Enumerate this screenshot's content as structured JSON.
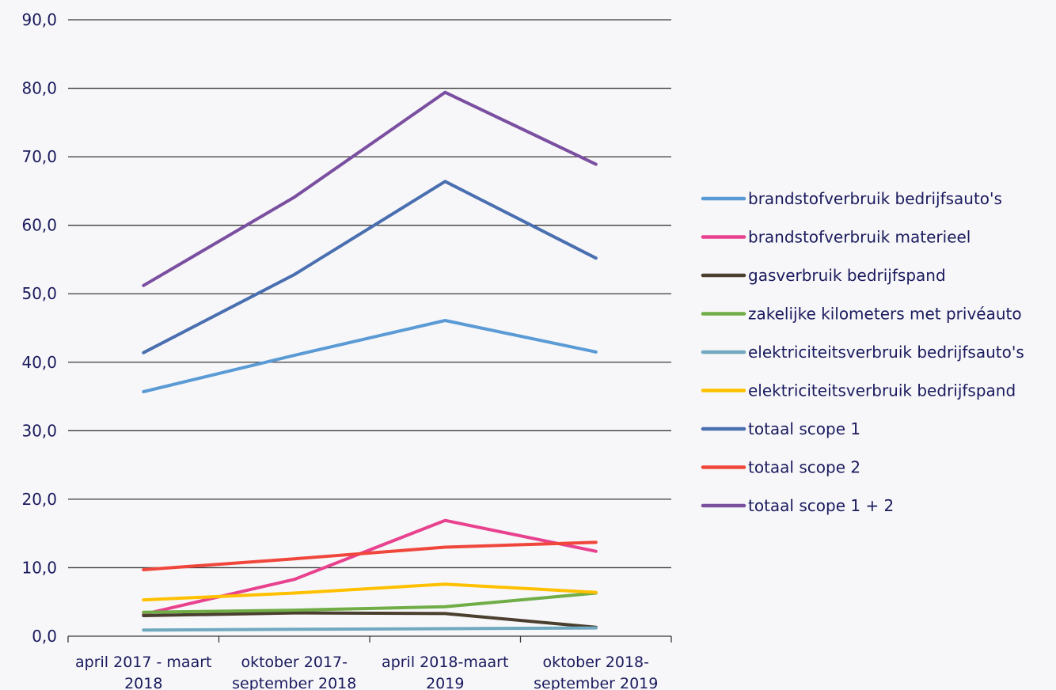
{
  "chart_data": {
    "type": "line",
    "title": "",
    "xlabel": "",
    "ylabel": "",
    "categories": [
      [
        "april 2017 - maart",
        "2018"
      ],
      [
        "oktober 2017-",
        "september 2018"
      ],
      [
        "april 2018-maart",
        "2019"
      ],
      [
        "oktober 2018-",
        "september 2019"
      ]
    ],
    "ylim": [
      0,
      90
    ],
    "yticks": [
      0,
      10,
      20,
      30,
      40,
      50,
      60,
      70,
      80,
      90
    ],
    "ytick_labels": [
      "0,0",
      "10,0",
      "20,0",
      "30,0",
      "40,0",
      "50,0",
      "60,0",
      "70,0",
      "80,0",
      "90,0"
    ],
    "grid": true,
    "legend_position": "right",
    "series": [
      {
        "name": "brandstofverbruik bedrijfsauto's",
        "color": "#5b9bd5",
        "values": [
          35.7,
          41.0,
          46.1,
          41.5
        ]
      },
      {
        "name": "brandstofverbruik materieel",
        "color": "#e8428f",
        "values": [
          3.2,
          8.3,
          16.9,
          12.4
        ]
      },
      {
        "name": "gasverbruik bedrijfspand",
        "color": "#4a3f2e",
        "values": [
          3.0,
          3.4,
          3.3,
          1.3
        ]
      },
      {
        "name": "zakelijke kilometers met privéauto",
        "color": "#70ad47",
        "values": [
          3.5,
          3.8,
          4.3,
          6.3
        ]
      },
      {
        "name": "elektriciteitsverbruik bedrijfsauto's",
        "color": "#6fa8bf",
        "values": [
          0.9,
          1.0,
          1.1,
          1.2
        ]
      },
      {
        "name": "elektriciteitsverbruik bedrijfspand",
        "color": "#ffc000",
        "values": [
          5.3,
          6.3,
          7.6,
          6.4
        ]
      },
      {
        "name": "totaal scope 1",
        "color": "#4a6fb0",
        "values": [
          41.4,
          52.8,
          66.4,
          55.2
        ]
      },
      {
        "name": "totaal scope 2",
        "color": "#f0463c",
        "values": [
          9.7,
          11.3,
          13.0,
          13.7
        ]
      },
      {
        "name": "totaal scope 1 + 2",
        "color": "#7b4fa0",
        "values": [
          51.2,
          64.1,
          79.4,
          68.9
        ]
      }
    ]
  }
}
